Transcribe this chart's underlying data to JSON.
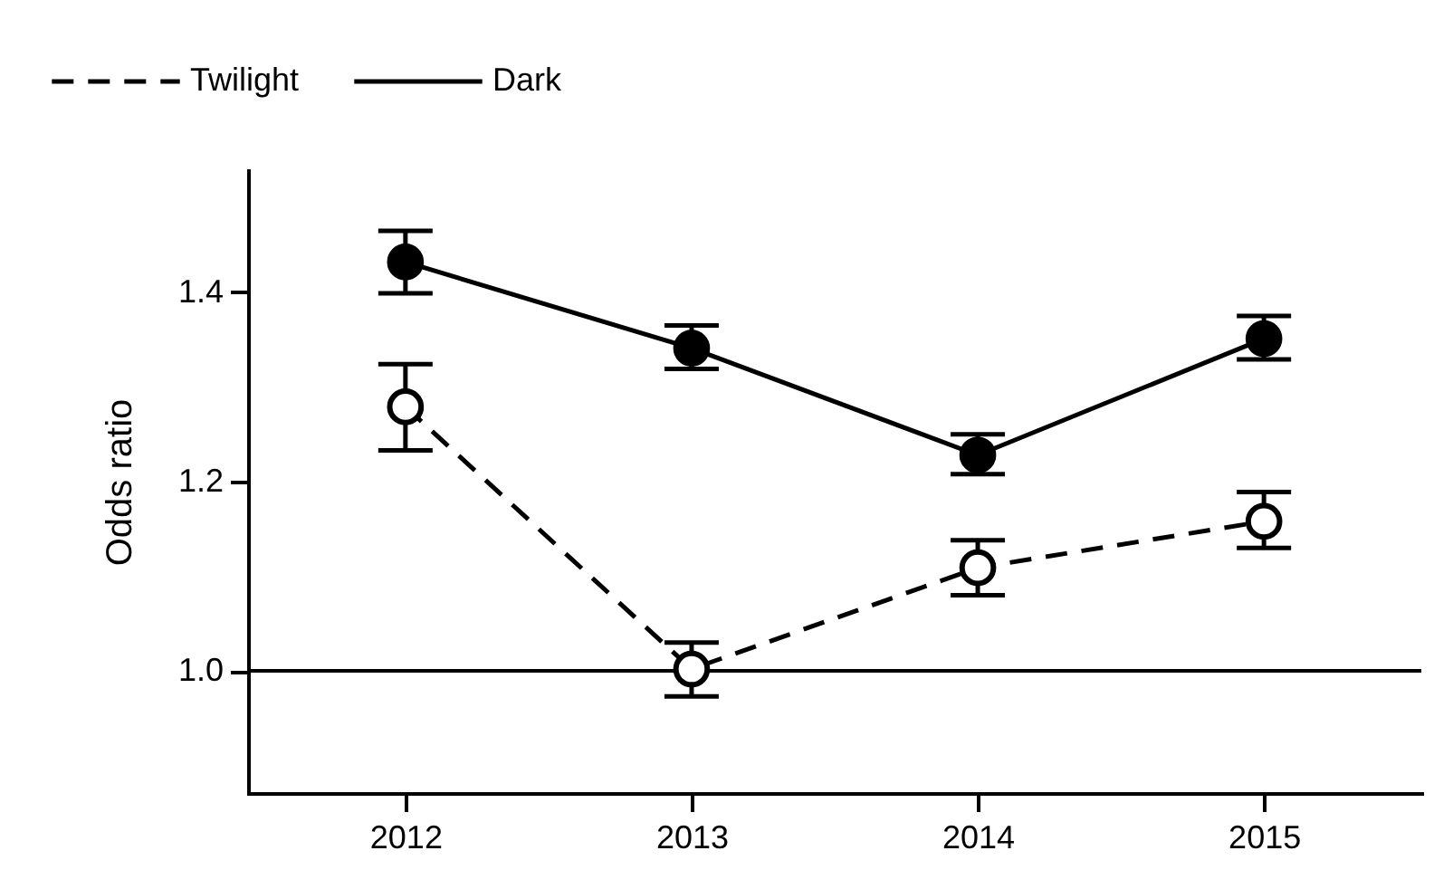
{
  "chart_data": {
    "type": "line",
    "ylabel": "Odds ratio",
    "categories": [
      "2012",
      "2013",
      "2014",
      "2015"
    ],
    "series": [
      {
        "name": "Twilight",
        "color": "#000000",
        "line_style": "dashed",
        "values": [
          1.279,
          1.002,
          1.109,
          1.158
        ],
        "errors": [
          [
            1.233,
            1.324
          ],
          [
            0.973,
            1.03
          ],
          [
            1.08,
            1.138
          ],
          [
            1.13,
            1.189
          ]
        ]
      },
      {
        "name": "Dark",
        "color": "#000000",
        "line_style": "solid",
        "values": [
          1.432,
          1.341,
          1.228,
          1.351
        ],
        "errors": [
          [
            1.399,
            1.465
          ],
          [
            1.319,
            1.365
          ],
          [
            1.208,
            1.25
          ],
          [
            1.329,
            1.375
          ]
        ]
      }
    ],
    "ylim": [
      0.871,
      1.529
    ],
    "yticks": [
      {
        "value": 1.0,
        "label": "1.0"
      },
      {
        "value": 1.2,
        "label": "1.2"
      },
      {
        "value": 1.4,
        "label": "1.4"
      }
    ],
    "ref_lines": [
      {
        "axis": "y",
        "value": 1.0,
        "label": null,
        "color": "#000000",
        "line_style": "solid"
      }
    ],
    "marker": "circle",
    "legend": "top left",
    "grid": false
  }
}
